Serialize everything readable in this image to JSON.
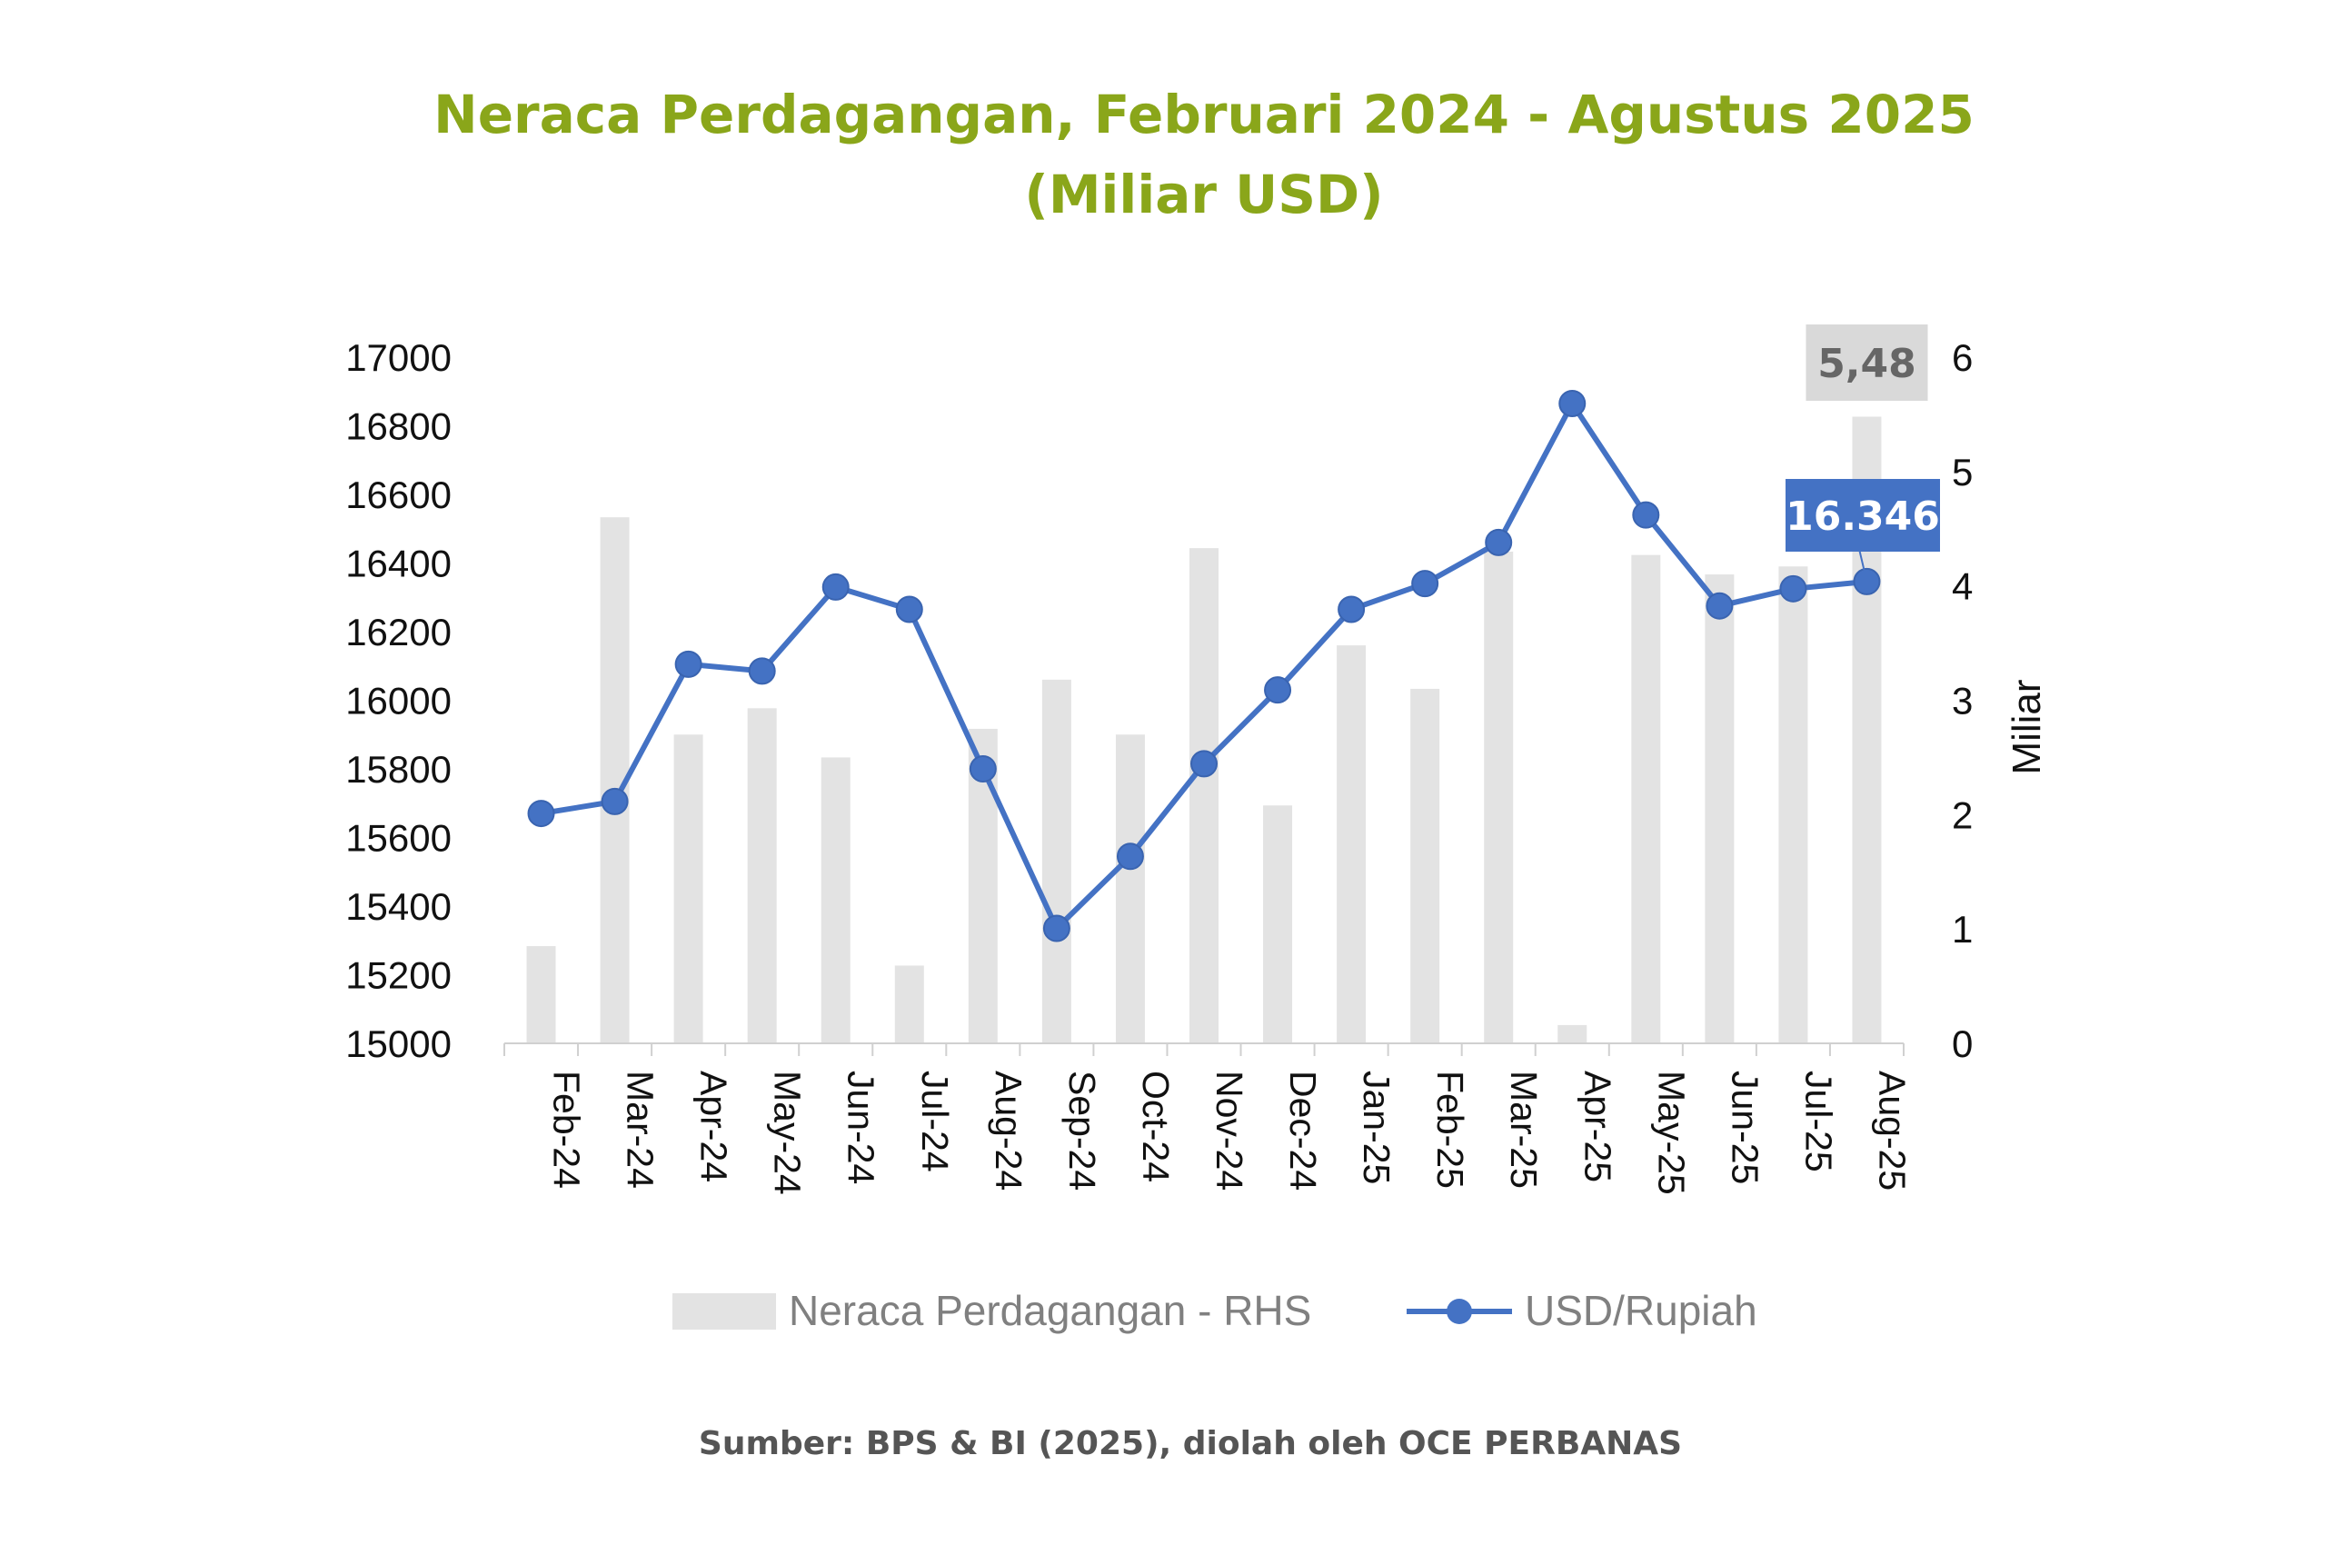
{
  "title_line1": "Neraca Perdagangan, Februari 2024 - Agustus 2025",
  "title_line2": "(Miliar USD)",
  "source": "Sumber: BPS & BI (2025), diolah oleh OCE PERBANAS",
  "colors": {
    "title": "#8aa61a",
    "bar": "#e3e3e3",
    "line": "#4472c4",
    "label_box": "#4472c4",
    "bar_label_box": "#d9d9d9"
  },
  "chart_data": {
    "type": "bar",
    "categories": [
      "Feb-24",
      "Mar-24",
      "Apr-24",
      "May-24",
      "Jun-24",
      "Jul-24",
      "Aug-24",
      "Sep-24",
      "Oct-24",
      "Nov-24",
      "Dec-24",
      "Jan-25",
      "Feb-25",
      "Mar-25",
      "Apr-25",
      "May-25",
      "Jun-25",
      "Jul-25",
      "Aug-25"
    ],
    "series": [
      {
        "name": "Neraca Perdagangan - RHS",
        "type": "bar",
        "axis": "right",
        "values": [
          0.85,
          4.6,
          2.7,
          2.93,
          2.5,
          0.68,
          2.75,
          3.18,
          2.7,
          4.33,
          2.08,
          3.48,
          3.1,
          4.3,
          0.16,
          4.27,
          4.1,
          4.17,
          5.48
        ]
      },
      {
        "name": "USD/Rupiah",
        "type": "line",
        "axis": "left",
        "values": [
          15670,
          15705,
          16105,
          16085,
          16330,
          16265,
          15800,
          15335,
          15545,
          15815,
          16030,
          16265,
          16340,
          16460,
          16865,
          16540,
          16275,
          16325,
          16346
        ]
      }
    ],
    "left_axis": {
      "min": 15000,
      "max": 17000,
      "ticks": [
        "15000",
        "15200",
        "15400",
        "15600",
        "15800",
        "16000",
        "16200",
        "16400",
        "16600",
        "16800",
        "17000"
      ]
    },
    "right_axis": {
      "min": 0,
      "max": 6,
      "label": "Miliar",
      "ticks": [
        "0",
        "1",
        "2",
        "3",
        "4",
        "5",
        "6"
      ]
    },
    "annotations": [
      {
        "text": "5,48",
        "series": "Neraca Perdagangan - RHS",
        "category": "Aug-25"
      },
      {
        "text": "16.346",
        "series": "USD/Rupiah",
        "category": "Aug-25"
      }
    ],
    "legend": {
      "placement": "bottom"
    },
    "grid": false
  }
}
